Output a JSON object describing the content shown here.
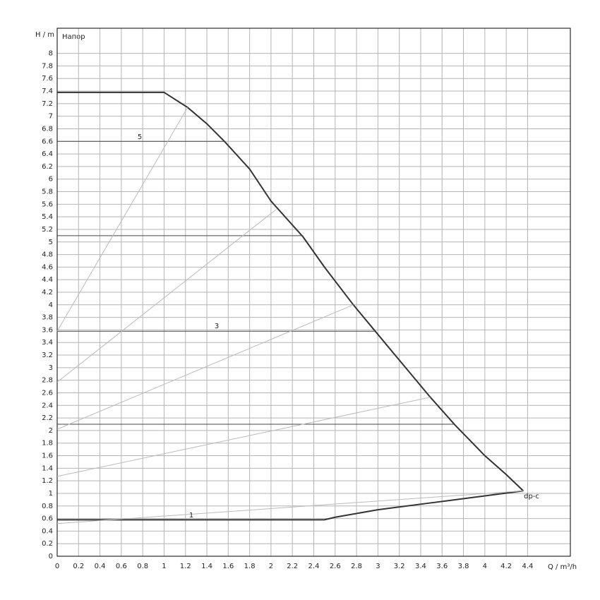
{
  "chart_data": {
    "type": "line",
    "y_label": "H / m",
    "y_sublabel": "Напор",
    "x_label": "Q / m³/h",
    "xlim": [
      0,
      4.8
    ],
    "ylim": [
      0,
      8.4
    ],
    "xticks": [
      0,
      0.2,
      0.4,
      0.6,
      0.8,
      1,
      1.2,
      1.4,
      1.6,
      1.8,
      2,
      2.2,
      2.4,
      2.6,
      2.8,
      3,
      3.2,
      3.4,
      3.6,
      3.8,
      4,
      4.2,
      4.4
    ],
    "yticks": [
      0,
      0.2,
      0.4,
      0.6,
      0.8,
      1,
      1.2,
      1.4,
      1.6,
      1.8,
      2,
      2.2,
      2.4,
      2.6,
      2.8,
      3,
      3.2,
      3.4,
      3.6,
      3.8,
      4,
      4.2,
      4.4,
      4.6,
      4.8,
      5,
      5.2,
      5.4,
      5.6,
      5.8,
      6,
      6.2,
      6.4,
      6.6,
      6.8,
      7,
      7.2,
      7.4,
      7.6,
      7.8,
      8
    ],
    "grid": true,
    "series": [
      {
        "color": "#333333",
        "x": [
          0,
          1,
          1.22,
          1.4,
          1.57,
          1.8,
          2.0,
          2.3,
          2.5,
          2.77,
          2.97,
          3.2,
          3.49,
          3.72,
          4.0,
          4.2,
          4.36
        ],
        "values": [
          7.38,
          7.38,
          7.14,
          6.88,
          6.59,
          6.16,
          5.65,
          5.08,
          4.6,
          4.0,
          3.59,
          3.12,
          2.53,
          2.09,
          1.6,
          1.3,
          1.04
        ]
      },
      {
        "color": "#333333",
        "x": [
          0,
          2.5,
          2.6,
          3.0,
          3.5,
          4.0,
          4.36
        ],
        "values": [
          0.58,
          0.58,
          0.62,
          0.74,
          0.85,
          0.96,
          1.04
        ]
      },
      {
        "color": "#444444",
        "x": [
          0,
          1.57
        ],
        "values": [
          6.6,
          6.6
        ]
      },
      {
        "color": "#444444",
        "x": [
          0,
          2.3
        ],
        "values": [
          5.1,
          5.1
        ]
      },
      {
        "color": "#444444",
        "x": [
          0,
          2.97
        ],
        "values": [
          3.58,
          3.58
        ]
      },
      {
        "color": "#444444",
        "x": [
          0,
          3.72
        ],
        "values": [
          2.1,
          2.1
        ]
      },
      {
        "color": "#bbbbbb",
        "x": [
          0,
          1.22
        ],
        "values": [
          3.58,
          7.14
        ]
      },
      {
        "color": "#bbbbbb",
        "x": [
          0,
          2.05
        ],
        "values": [
          2.77,
          5.52
        ]
      },
      {
        "color": "#bbbbbb",
        "x": [
          0,
          2.77
        ],
        "values": [
          2.02,
          4.0
        ]
      },
      {
        "color": "#bbbbbb",
        "x": [
          0,
          3.49
        ],
        "values": [
          1.27,
          2.53
        ]
      },
      {
        "color": "#bbbbbb",
        "x": [
          0,
          4.36
        ],
        "values": [
          0.52,
          1.04
        ]
      }
    ],
    "annotations": [
      "5",
      "3",
      "1",
      "dp-c"
    ]
  }
}
